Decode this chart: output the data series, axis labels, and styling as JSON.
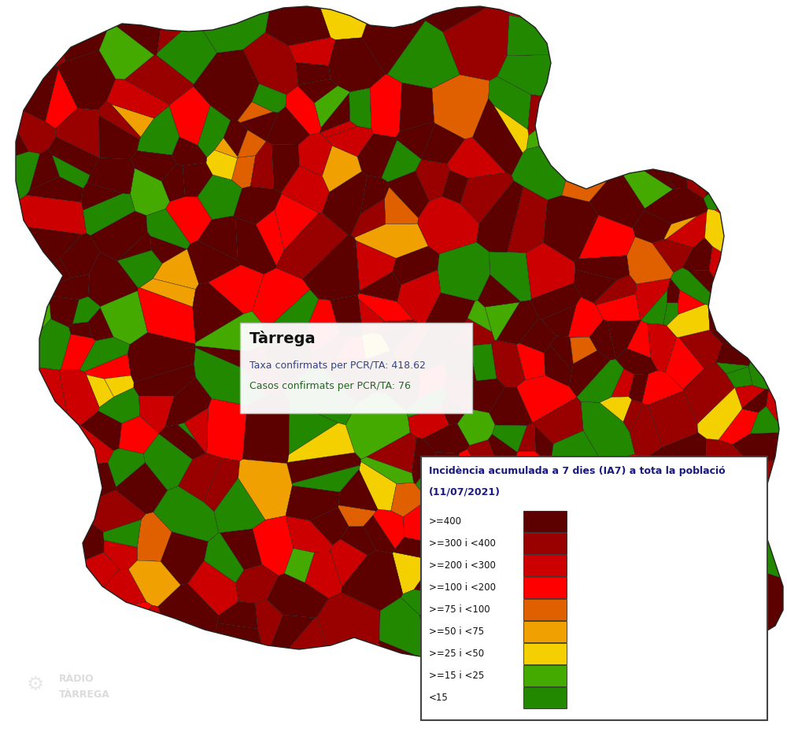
{
  "legend_title_line1": "Incidència acumulada a 7 dies (IA7) a tota la població",
  "legend_title_line2": "(11/07/2021)",
  "legend_items": [
    {
      "label": ">=400",
      "color": "#5c0000"
    },
    {
      "label": ">=300 i <400",
      "color": "#990000"
    },
    {
      "label": ">=200 i <300",
      "color": "#cc0000"
    },
    {
      "label": ">=100 i <200",
      "color": "#ff0000"
    },
    {
      "label": ">=75 i <100",
      "color": "#e06000"
    },
    {
      "label": ">=50 i <75",
      "color": "#f0a000"
    },
    {
      "label": ">=25 i <50",
      "color": "#f5d000"
    },
    {
      "label": ">=15 i <25",
      "color": "#44aa00"
    },
    {
      "label": "<15",
      "color": "#228800"
    }
  ],
  "tooltip_title": "Tàrrega",
  "tooltip_line1": "Taxa confirmats per PCR/TA: 418.62",
  "tooltip_line2": "Casos confirmats per PCR/TA: 76",
  "watermark_line1": "RÀDIO",
  "watermark_line2": "TÀRREGA",
  "bg_color": "#ffffff",
  "fig_w": 10.0,
  "fig_h": 9.3,
  "dpi": 100,
  "map_colors": [
    "#5c0000",
    "#228800",
    "#ff0000",
    "#990000",
    "#cc0000",
    "#44aa00",
    "#e06000",
    "#f0a000",
    "#f5d000"
  ],
  "map_seed": 17,
  "n_voronoi": 500,
  "color_weights": [
    0.38,
    0.14,
    0.11,
    0.1,
    0.09,
    0.06,
    0.04,
    0.04,
    0.04
  ]
}
